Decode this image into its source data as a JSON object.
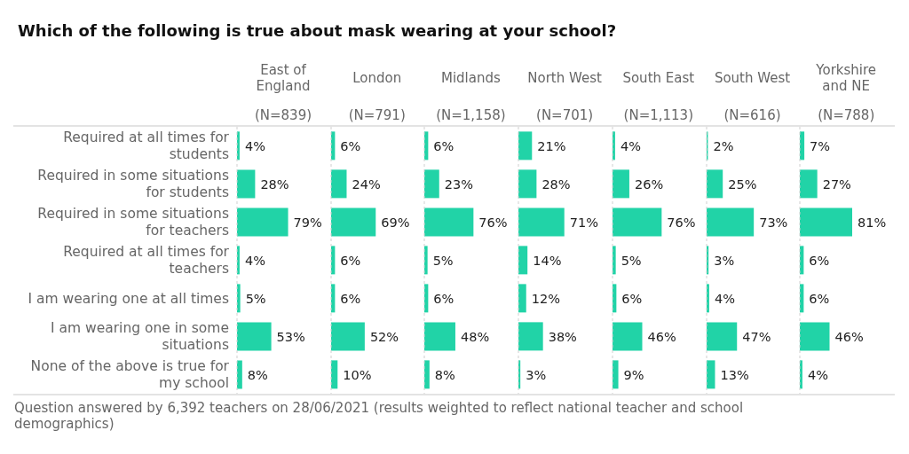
{
  "chart_data": [
    {
      "type": "other",
      "title": "Which of the following is true about mask wearing at your school?",
      "annotations": [
        "Question answered by 6,392 teachers on 28/06/2021 (results weighted to reflect national teacher and school demographics)"
      ]
    },
    {
      "type": "bar",
      "orientation": "horizontal",
      "title": "East of England",
      "subtitle": "(N=839)",
      "categories": [
        "Required at all times for students",
        "Required in some situations for students",
        "Required in some situations for teachers",
        "Required at all times for teachers",
        "I am wearing one at all times",
        "I am wearing one in some situations",
        "None of the above is true for my school"
      ],
      "values": [
        4,
        28,
        79,
        4,
        5,
        53,
        8
      ],
      "value_labels": [
        "4%",
        "28%",
        "79%",
        "4%",
        "5%",
        "53%",
        "8%"
      ],
      "color": "#21d3a7",
      "tick_labels": "y"
    },
    {
      "type": "bar",
      "orientation": "horizontal",
      "title": "London",
      "subtitle": "(N=791)",
      "categories": [
        null,
        null,
        null,
        null,
        null,
        null,
        null
      ],
      "values": [
        6,
        24,
        69,
        6,
        6,
        52,
        10
      ],
      "value_labels": [
        "6%",
        "24%",
        "69%",
        "6%",
        "6%",
        "52%",
        "10%"
      ],
      "color": "#21d3a7",
      "tick_labels": false
    },
    {
      "type": "bar",
      "orientation": "horizontal",
      "title": "Midlands",
      "subtitle": "(N=1,158)",
      "categories": [
        null,
        null,
        null,
        null,
        null,
        null,
        null
      ],
      "values": [
        6,
        23,
        76,
        5,
        6,
        48,
        8
      ],
      "value_labels": [
        "6%",
        "23%",
        "76%",
        "5%",
        "6%",
        "48%",
        "8%"
      ],
      "color": "#21d3a7",
      "tick_labels": false
    },
    {
      "type": "bar",
      "orientation": "horizontal",
      "title": "North West",
      "subtitle": "(N=701)",
      "categories": [
        null,
        null,
        null,
        null,
        null,
        null,
        null
      ],
      "values": [
        21,
        28,
        71,
        14,
        12,
        38,
        3
      ],
      "value_labels": [
        "21%",
        "28%",
        "71%",
        "14%",
        "12%",
        "38%",
        "3%"
      ],
      "color": "#21d3a7",
      "tick_labels": false
    },
    {
      "type": "bar",
      "orientation": "horizontal",
      "title": "South East",
      "subtitle": "(N=1,113)",
      "categories": [
        null,
        null,
        null,
        null,
        null,
        null,
        null
      ],
      "values": [
        4,
        26,
        76,
        5,
        6,
        46,
        9
      ],
      "value_labels": [
        "4%",
        "26%",
        "76%",
        "5%",
        "6%",
        "46%",
        "9%"
      ],
      "color": "#21d3a7",
      "tick_labels": false
    },
    {
      "type": "bar",
      "orientation": "horizontal",
      "title": "South West",
      "subtitle": "(N=616)",
      "categories": [
        null,
        null,
        null,
        null,
        null,
        null,
        null
      ],
      "values": [
        2,
        25,
        73,
        3,
        4,
        47,
        13
      ],
      "value_labels": [
        "2%",
        "25%",
        "73%",
        "3%",
        "4%",
        "47%",
        "13%"
      ],
      "color": "#21d3a7",
      "tick_labels": false
    },
    {
      "type": "bar",
      "orientation": "horizontal",
      "title": "Yorkshire and NE",
      "subtitle": "(N=788)",
      "categories": [
        null,
        null,
        null,
        null,
        null,
        null,
        null
      ],
      "values": [
        7,
        27,
        81,
        6,
        6,
        46,
        4
      ],
      "value_labels": [
        "7%",
        "27%",
        "81%",
        "6%",
        "6%",
        "46%",
        "4%"
      ],
      "color": "#21d3a7",
      "tick_labels": false
    }
  ]
}
